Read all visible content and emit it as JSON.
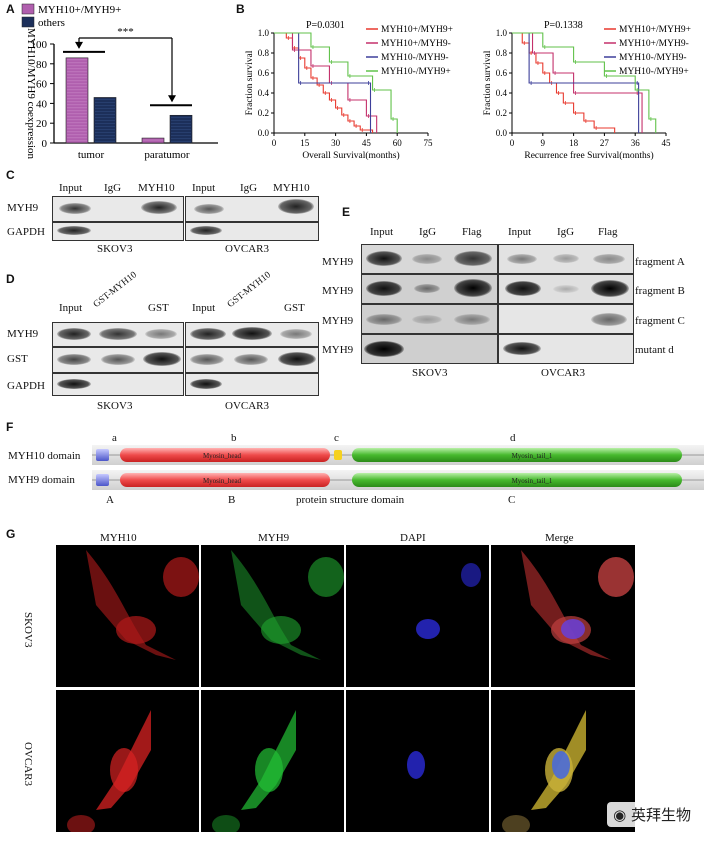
{
  "panels": {
    "A": {
      "label": "A",
      "legend": [
        "MYH10+/MYH9+",
        "others"
      ],
      "ylabel": "MYH10/MYH9 coexpression",
      "significance": "***",
      "yticks": [
        "0",
        "20",
        "40",
        "60",
        "80",
        "100"
      ]
    },
    "B": {
      "label": "B",
      "left": {
        "p": "P=0.0301",
        "ylabel": "Fraction survival",
        "xlabel": "Overall Survival(months)",
        "xticks": [
          "0",
          "15",
          "30",
          "45",
          "60",
          "75"
        ]
      },
      "right": {
        "p": "P=0.1338",
        "ylabel": "Fraction survival",
        "xlabel": "Recurrence free Survival(months)",
        "xticks": [
          "0",
          "9",
          "18",
          "27",
          "36",
          "45"
        ]
      },
      "yticks": [
        "0.0",
        "0.2",
        "0.4",
        "0.6",
        "0.8",
        "1.0"
      ],
      "legend": [
        "MYH10+/MYH9+",
        "MYH10+/MYH9-",
        "MYH10-/MYH9-",
        "MYH10-/MYH9+"
      ]
    },
    "C": {
      "label": "C",
      "cols": [
        "Input",
        "IgG",
        "MYH10",
        "Input",
        "IgG",
        "MYH10"
      ],
      "rows": [
        "MYH9",
        "GAPDH"
      ],
      "cells": [
        "SKOV3",
        "OVCAR3"
      ]
    },
    "D": {
      "label": "D",
      "cols": [
        "Input",
        "GST-MYH10",
        "GST",
        "Input",
        "GST-MYH10",
        "GST"
      ],
      "rows": [
        "MYH9",
        "GST",
        "GAPDH"
      ],
      "cells": [
        "SKOV3",
        "OVCAR3"
      ]
    },
    "E": {
      "label": "E",
      "cols": [
        "Input",
        "IgG",
        "Flag",
        "Input",
        "IgG",
        "Flag"
      ],
      "rows": [
        "MYH9",
        "MYH9",
        "MYH9",
        "MYH9"
      ],
      "fragments": [
        "fragment A",
        "fragment B",
        "fragment C",
        "mutant d"
      ],
      "cells": [
        "SKOV3",
        "OVCAR3"
      ]
    },
    "F": {
      "label": "F",
      "top_letters": [
        "a",
        "b",
        "c",
        "d"
      ],
      "bottom_letters": [
        "A",
        "B",
        "C"
      ],
      "rows": [
        "MYH10 domain",
        "MYH9 domain"
      ],
      "head": "Myosin_head",
      "tail": "Myosin_tail_1",
      "caption": "protein structure domain"
    },
    "G": {
      "label": "G",
      "cols": [
        "MYH10",
        "MYH9",
        "DAPI",
        "Merge"
      ],
      "rows": [
        "SKOV3",
        "OVCAR3"
      ]
    }
  },
  "chart_data": [
    {
      "type": "bar",
      "categories": [
        "tumor",
        "paratumor"
      ],
      "series": [
        {
          "name": "MYH10+/MYH9+",
          "values": [
            86,
            5
          ],
          "color": "#b05fae"
        },
        {
          "name": "others",
          "values": [
            46,
            28
          ],
          "color": "#1c2f5a"
        }
      ],
      "ylabel": "MYH10/MYH9 coexpression",
      "ylim": [
        0,
        100
      ],
      "annotation": "***"
    },
    {
      "type": "line",
      "title": "P=0.0301",
      "xlabel": "Overall Survival(months)",
      "ylabel": "Fraction survival",
      "xlim": [
        0,
        75
      ],
      "ylim": [
        0,
        1
      ],
      "legend_position": "top-right",
      "series": [
        {
          "name": "MYH10+/MYH9+",
          "color": "#e8392e",
          "x": [
            0,
            6,
            9,
            12,
            15,
            18,
            21,
            24,
            27,
            30,
            33,
            36,
            39,
            42,
            48
          ],
          "y": [
            1,
            0.95,
            0.85,
            0.75,
            0.65,
            0.55,
            0.48,
            0.4,
            0.33,
            0.25,
            0.18,
            0.12,
            0.07,
            0.03,
            0
          ]
        },
        {
          "name": "MYH10+/MYH9-",
          "color": "#c4306b",
          "x": [
            0,
            9,
            18,
            27,
            36,
            45,
            50
          ],
          "y": [
            1,
            0.83,
            0.67,
            0.5,
            0.33,
            0.17,
            0
          ]
        },
        {
          "name": "MYH10-/MYH9-",
          "color": "#3d3f9a",
          "x": [
            0,
            12,
            45,
            47
          ],
          "y": [
            1,
            0.5,
            0.5,
            0
          ]
        },
        {
          "name": "MYH10-/MYH9+",
          "color": "#61c24a",
          "x": [
            0,
            18,
            27,
            36,
            48,
            57,
            60
          ],
          "y": [
            1,
            0.86,
            0.71,
            0.57,
            0.43,
            0.14,
            0
          ]
        }
      ]
    },
    {
      "type": "line",
      "title": "P=0.1338",
      "xlabel": "Recurrence free Survival(months)",
      "ylabel": "Fraction survival",
      "xlim": [
        0,
        45
      ],
      "ylim": [
        0,
        1
      ],
      "legend_position": "top-right",
      "series": [
        {
          "name": "MYH10+/MYH9+",
          "color": "#e8392e",
          "x": [
            0,
            3,
            5,
            7,
            9,
            11,
            13,
            15,
            18,
            21,
            24,
            30
          ],
          "y": [
            1,
            0.9,
            0.8,
            0.7,
            0.6,
            0.5,
            0.4,
            0.3,
            0.2,
            0.12,
            0.05,
            0
          ]
        },
        {
          "name": "MYH10+/MYH9-",
          "color": "#c4306b",
          "x": [
            0,
            6,
            12,
            18,
            36,
            38
          ],
          "y": [
            1,
            0.8,
            0.6,
            0.4,
            0.4,
            0
          ]
        },
        {
          "name": "MYH10-/MYH9-",
          "color": "#3d3f9a",
          "x": [
            0,
            5,
            36,
            37
          ],
          "y": [
            1,
            0.5,
            0.5,
            0
          ]
        },
        {
          "name": "MYH10-/MYH9+",
          "color": "#61c24a",
          "x": [
            0,
            9,
            18,
            27,
            36,
            40,
            42
          ],
          "y": [
            1,
            0.86,
            0.71,
            0.57,
            0.43,
            0.14,
            0
          ]
        }
      ]
    }
  ],
  "watermark": "英拜生物"
}
